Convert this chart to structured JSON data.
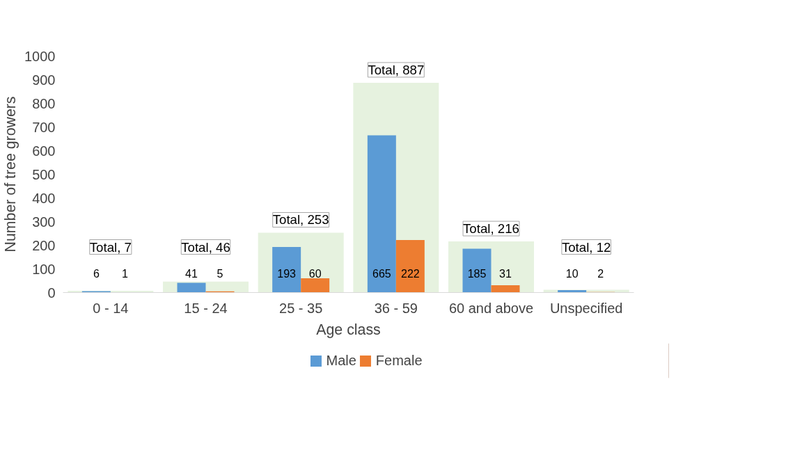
{
  "chart_data": {
    "type": "bar",
    "xlabel": "Age class",
    "ylabel": "Number of tree growers",
    "categories": [
      "0 - 14",
      "15 - 24",
      "25 - 35",
      "36 - 59",
      "60 and above",
      "Unspecified"
    ],
    "series": [
      {
        "color": "#e2f0d9",
        "values": [
          7,
          46,
          253,
          887,
          216,
          12
        ],
        "value_labels": [
          "Total, 7",
          "Total, 46",
          "Total, 253",
          "Total, 887",
          "Total, 216",
          "Total, 12"
        ]
      },
      {
        "name": "Male",
        "color": "#5b9bd5",
        "values": [
          6,
          41,
          193,
          665,
          185,
          10
        ],
        "value_labels": [
          "6",
          "41",
          "193",
          "665",
          "185",
          "10"
        ]
      },
      {
        "name": "Female",
        "color": "#ed7d31",
        "values": [
          1,
          5,
          60,
          222,
          31,
          2
        ],
        "value_labels": [
          "1",
          "5",
          "60",
          "222",
          "31",
          "2"
        ]
      }
    ],
    "ylim": [
      0,
      1000
    ],
    "yticks": [
      0,
      100,
      200,
      300,
      400,
      500,
      600,
      700,
      800,
      900,
      1000
    ],
    "grid": false,
    "legend": "bottom"
  }
}
